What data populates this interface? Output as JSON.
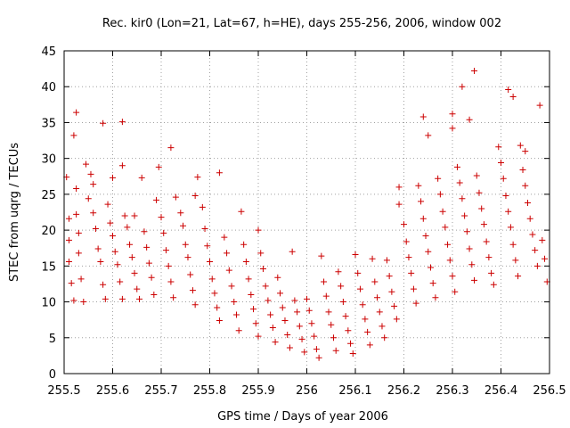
{
  "chart_data": {
    "type": "scatter",
    "title": "Rec. kir0 (Lon=21, Lat=67, h=HE), days 255-256, 2006, window 002",
    "xlabel": "GPS time / Days of year 2006",
    "ylabel": "STEC from uqrg / TECUs",
    "xlim": [
      255.5,
      256.5
    ],
    "ylim": [
      0,
      45
    ],
    "xticks": [
      "255.5",
      "255.6",
      "255.7",
      "255.8",
      "255.9",
      "256",
      "256.1",
      "256.2",
      "256.3",
      "256.4",
      "256.5"
    ],
    "yticks": [
      "0",
      "5",
      "10",
      "15",
      "20",
      "25",
      "30",
      "35",
      "40",
      "45"
    ],
    "grid": true,
    "marker": "plus",
    "color": "#cc0000",
    "points": [
      [
        255.505,
        27.4
      ],
      [
        255.51,
        21.6
      ],
      [
        255.51,
        18.6
      ],
      [
        255.51,
        15.6
      ],
      [
        255.515,
        12.6
      ],
      [
        255.52,
        10.2
      ],
      [
        255.525,
        25.8
      ],
      [
        255.525,
        22.2
      ],
      [
        255.53,
        19.6
      ],
      [
        255.53,
        16.8
      ],
      [
        255.535,
        13.2
      ],
      [
        255.54,
        10.0
      ],
      [
        255.52,
        33.2
      ],
      [
        255.525,
        36.4
      ],
      [
        255.545,
        29.2
      ],
      [
        255.555,
        27.8
      ],
      [
        255.56,
        26.4
      ],
      [
        255.55,
        24.4
      ],
      [
        255.56,
        22.4
      ],
      [
        255.565,
        20.2
      ],
      [
        255.57,
        17.4
      ],
      [
        255.575,
        15.6
      ],
      [
        255.58,
        12.4
      ],
      [
        255.585,
        10.4
      ],
      [
        255.59,
        23.6
      ],
      [
        255.595,
        21.0
      ],
      [
        255.6,
        19.2
      ],
      [
        255.605,
        17.0
      ],
      [
        255.61,
        15.2
      ],
      [
        255.615,
        12.8
      ],
      [
        255.62,
        10.4
      ],
      [
        255.58,
        34.9
      ],
      [
        255.62,
        35.1
      ],
      [
        255.62,
        29.0
      ],
      [
        255.6,
        27.3
      ],
      [
        255.625,
        22.0
      ],
      [
        255.63,
        20.4
      ],
      [
        255.635,
        18.0
      ],
      [
        255.64,
        16.2
      ],
      [
        255.645,
        14.0
      ],
      [
        255.65,
        11.8
      ],
      [
        255.655,
        10.4
      ],
      [
        255.66,
        27.3
      ],
      [
        255.645,
        22.0
      ],
      [
        255.665,
        19.8
      ],
      [
        255.67,
        17.6
      ],
      [
        255.675,
        15.4
      ],
      [
        255.68,
        13.4
      ],
      [
        255.685,
        11.0
      ],
      [
        255.69,
        24.2
      ],
      [
        255.695,
        28.8
      ],
      [
        255.7,
        21.8
      ],
      [
        255.705,
        19.6
      ],
      [
        255.71,
        17.2
      ],
      [
        255.715,
        15.0
      ],
      [
        255.72,
        12.8
      ],
      [
        255.725,
        10.6
      ],
      [
        255.72,
        31.5
      ],
      [
        255.73,
        24.6
      ],
      [
        255.74,
        22.4
      ],
      [
        255.745,
        20.6
      ],
      [
        255.75,
        18.0
      ],
      [
        255.755,
        16.2
      ],
      [
        255.76,
        13.8
      ],
      [
        255.765,
        11.6
      ],
      [
        255.77,
        9.6
      ],
      [
        255.775,
        27.4
      ],
      [
        255.77,
        24.8
      ],
      [
        255.785,
        23.2
      ],
      [
        255.79,
        20.2
      ],
      [
        255.795,
        17.8
      ],
      [
        255.8,
        15.6
      ],
      [
        255.805,
        13.2
      ],
      [
        255.81,
        11.2
      ],
      [
        255.815,
        9.2
      ],
      [
        255.82,
        28.0
      ],
      [
        255.82,
        7.4
      ],
      [
        255.83,
        19.0
      ],
      [
        255.835,
        16.8
      ],
      [
        255.84,
        14.4
      ],
      [
        255.845,
        12.2
      ],
      [
        255.85,
        10.0
      ],
      [
        255.855,
        8.2
      ],
      [
        255.86,
        6.0
      ],
      [
        255.865,
        22.6
      ],
      [
        255.87,
        18.0
      ],
      [
        255.875,
        15.6
      ],
      [
        255.88,
        13.2
      ],
      [
        255.885,
        11.0
      ],
      [
        255.89,
        9.0
      ],
      [
        255.895,
        7.0
      ],
      [
        255.9,
        5.2
      ],
      [
        255.9,
        20.0
      ],
      [
        255.905,
        16.8
      ],
      [
        255.91,
        14.6
      ],
      [
        255.915,
        12.2
      ],
      [
        255.92,
        10.2
      ],
      [
        255.925,
        8.2
      ],
      [
        255.93,
        6.4
      ],
      [
        255.935,
        4.4
      ],
      [
        255.94,
        13.4
      ],
      [
        255.945,
        11.2
      ],
      [
        255.95,
        9.2
      ],
      [
        255.955,
        7.4
      ],
      [
        255.96,
        5.4
      ],
      [
        255.965,
        3.6
      ],
      [
        255.97,
        17.0
      ],
      [
        255.975,
        10.2
      ],
      [
        255.98,
        8.6
      ],
      [
        255.985,
        6.6
      ],
      [
        255.99,
        4.8
      ],
      [
        255.995,
        3.0
      ],
      [
        256.0,
        10.4
      ],
      [
        256.005,
        8.8
      ],
      [
        256.01,
        7.0
      ],
      [
        256.015,
        5.2
      ],
      [
        256.02,
        3.4
      ],
      [
        256.025,
        2.2
      ],
      [
        256.03,
        16.4
      ],
      [
        256.035,
        12.8
      ],
      [
        256.04,
        10.8
      ],
      [
        256.045,
        8.6
      ],
      [
        256.05,
        6.8
      ],
      [
        256.055,
        5.0
      ],
      [
        256.06,
        3.2
      ],
      [
        256.065,
        14.2
      ],
      [
        256.07,
        12.2
      ],
      [
        256.075,
        10.0
      ],
      [
        256.08,
        8.0
      ],
      [
        256.085,
        6.0
      ],
      [
        256.09,
        4.2
      ],
      [
        256.095,
        2.8
      ],
      [
        256.1,
        16.6
      ],
      [
        256.105,
        14.0
      ],
      [
        256.11,
        11.8
      ],
      [
        256.115,
        9.6
      ],
      [
        256.12,
        7.6
      ],
      [
        256.125,
        5.8
      ],
      [
        256.13,
        4.0
      ],
      [
        256.135,
        16.0
      ],
      [
        256.14,
        12.8
      ],
      [
        256.145,
        10.6
      ],
      [
        256.15,
        8.6
      ],
      [
        256.155,
        6.6
      ],
      [
        256.16,
        5.0
      ],
      [
        256.165,
        15.8
      ],
      [
        256.17,
        13.6
      ],
      [
        256.175,
        11.4
      ],
      [
        256.18,
        9.4
      ],
      [
        256.185,
        7.6
      ],
      [
        256.19,
        26.0
      ],
      [
        256.19,
        23.6
      ],
      [
        256.2,
        20.8
      ],
      [
        256.205,
        18.4
      ],
      [
        256.21,
        16.2
      ],
      [
        256.215,
        14.0
      ],
      [
        256.22,
        11.8
      ],
      [
        256.225,
        9.8
      ],
      [
        256.23,
        26.2
      ],
      [
        256.235,
        24.0
      ],
      [
        256.24,
        21.6
      ],
      [
        256.245,
        19.2
      ],
      [
        256.25,
        17.0
      ],
      [
        256.255,
        14.8
      ],
      [
        256.26,
        12.6
      ],
      [
        256.265,
        10.6
      ],
      [
        256.24,
        35.8
      ],
      [
        256.25,
        33.2
      ],
      [
        256.27,
        27.2
      ],
      [
        256.275,
        25.0
      ],
      [
        256.28,
        22.6
      ],
      [
        256.285,
        20.4
      ],
      [
        256.29,
        18.0
      ],
      [
        256.295,
        15.8
      ],
      [
        256.3,
        13.6
      ],
      [
        256.305,
        11.4
      ],
      [
        256.3,
        36.2
      ],
      [
        256.3,
        34.2
      ],
      [
        256.31,
        28.8
      ],
      [
        256.315,
        26.6
      ],
      [
        256.32,
        24.4
      ],
      [
        256.325,
        22.0
      ],
      [
        256.33,
        19.8
      ],
      [
        256.335,
        17.4
      ],
      [
        256.34,
        15.2
      ],
      [
        256.345,
        13.0
      ],
      [
        256.32,
        40.0
      ],
      [
        256.335,
        35.4
      ],
      [
        256.345,
        42.2
      ],
      [
        256.35,
        27.6
      ],
      [
        256.355,
        25.2
      ],
      [
        256.36,
        23.0
      ],
      [
        256.365,
        20.8
      ],
      [
        256.37,
        18.4
      ],
      [
        256.375,
        16.2
      ],
      [
        256.38,
        14.0
      ],
      [
        256.385,
        12.4
      ],
      [
        256.395,
        31.6
      ],
      [
        256.4,
        29.4
      ],
      [
        256.405,
        27.2
      ],
      [
        256.41,
        24.8
      ],
      [
        256.415,
        22.6
      ],
      [
        256.42,
        20.4
      ],
      [
        256.425,
        18.0
      ],
      [
        256.43,
        15.8
      ],
      [
        256.435,
        13.6
      ],
      [
        256.415,
        39.6
      ],
      [
        256.425,
        38.6
      ],
      [
        256.44,
        31.8
      ],
      [
        256.45,
        31.0
      ],
      [
        256.445,
        28.4
      ],
      [
        256.45,
        26.2
      ],
      [
        256.455,
        23.8
      ],
      [
        256.46,
        21.6
      ],
      [
        256.465,
        19.4
      ],
      [
        256.47,
        17.2
      ],
      [
        256.475,
        15.0
      ],
      [
        256.48,
        37.4
      ],
      [
        256.485,
        18.6
      ],
      [
        256.49,
        16.0
      ],
      [
        256.495,
        12.8
      ]
    ]
  }
}
